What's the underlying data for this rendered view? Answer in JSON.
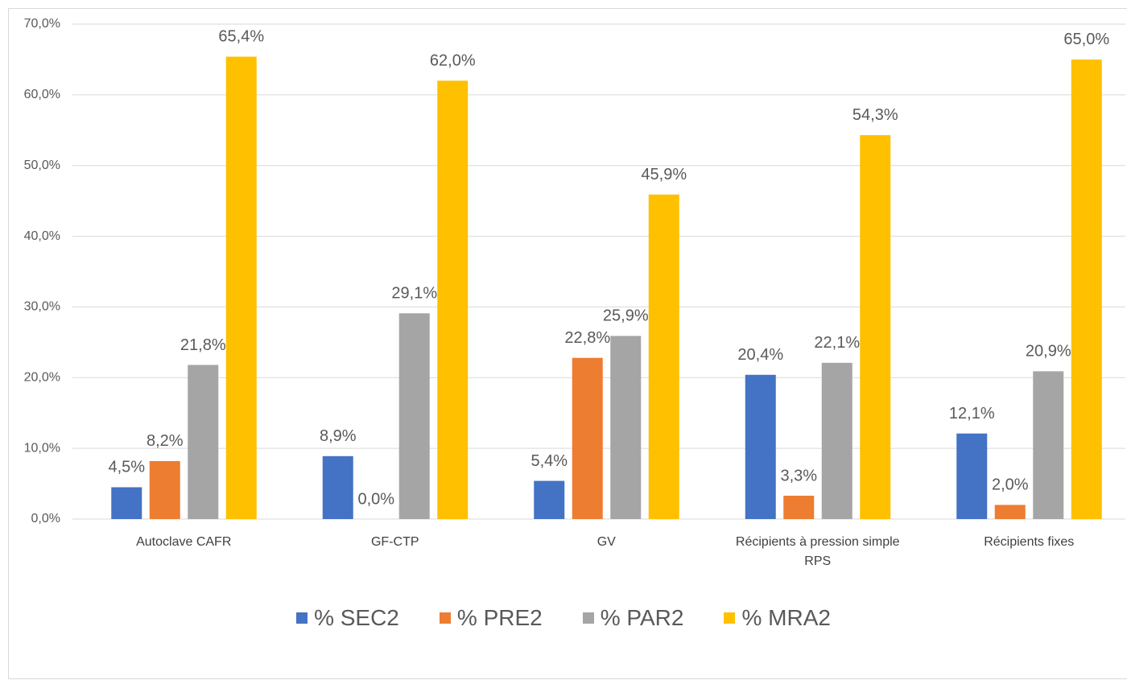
{
  "chart_data": {
    "type": "bar",
    "categories": [
      "Autoclave CAFR",
      "GF-CTP",
      "GV",
      "Récipients à pression simple RPS",
      "Récipients fixes"
    ],
    "series": [
      {
        "name": "% SEC2",
        "color": "#4472c4",
        "values": [
          4.5,
          8.9,
          5.4,
          20.4,
          12.1
        ],
        "value_labels": [
          "4,5%",
          "8,9%",
          "5,4%",
          "20,4%",
          "12,1%"
        ]
      },
      {
        "name": "% PRE2",
        "color": "#ed7d31",
        "values": [
          8.2,
          0.0,
          22.8,
          3.3,
          2.0
        ],
        "value_labels": [
          "8,2%",
          "0,0%",
          "22,8%",
          "3,3%",
          "2,0%"
        ]
      },
      {
        "name": "% PAR2",
        "color": "#a5a5a5",
        "values": [
          21.8,
          29.1,
          25.9,
          22.1,
          20.9
        ],
        "value_labels": [
          "21,8%",
          "29,1%",
          "25,9%",
          "22,1%",
          "20,9%"
        ]
      },
      {
        "name": "% MRA2",
        "color": "#ffc000",
        "values": [
          65.4,
          62.0,
          45.9,
          54.3,
          65.0
        ],
        "value_labels": [
          "65,4%",
          "62,0%",
          "45,9%",
          "54,3%",
          "65,0%"
        ]
      }
    ],
    "ylim": [
      0,
      70
    ],
    "yticks": [
      {
        "value": 0,
        "label": "0,0%"
      },
      {
        "value": 10,
        "label": "10,0%"
      },
      {
        "value": 20,
        "label": "20,0%"
      },
      {
        "value": 30,
        "label": "30,0%"
      },
      {
        "value": 40,
        "label": "40,0%"
      },
      {
        "value": 50,
        "label": "50,0%"
      },
      {
        "value": 60,
        "label": "60,0%"
      },
      {
        "value": 70,
        "label": "70,0%"
      }
    ],
    "grid": true,
    "legend": "bottom"
  }
}
